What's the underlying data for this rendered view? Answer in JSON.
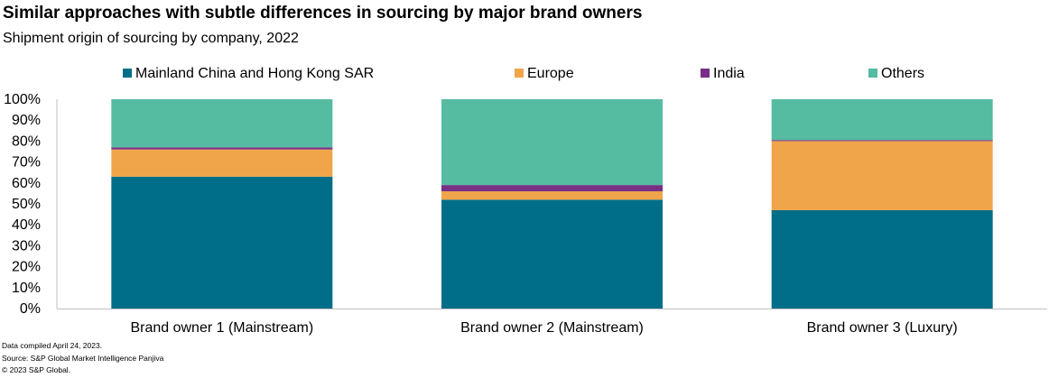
{
  "header": {
    "title": "Similar approaches with subtle differences in sourcing by major brand owners",
    "subtitle": "Shipment origin of sourcing by company, 2022"
  },
  "footer": {
    "line1": "Data compiled April 24, 2023.",
    "line2": "Source: S&P Global Market Intelligence Panjiva",
    "line3": "© 2023 S&P Global."
  },
  "chart_data": {
    "type": "bar",
    "stacked": true,
    "categories": [
      "Brand owner 1 (Mainstream)",
      "Brand owner 2 (Mainstream)",
      "Brand owner 3 (Luxury)"
    ],
    "series": [
      {
        "name": "Mainland China and Hong Kong SAR",
        "color": "#006E89",
        "values": [
          63,
          52,
          47
        ]
      },
      {
        "name": "Europe",
        "color": "#F0A54A",
        "values": [
          13,
          4,
          33
        ]
      },
      {
        "name": "India",
        "color": "#782F85",
        "values": [
          1,
          3,
          0.5
        ]
      },
      {
        "name": "Others",
        "color": "#55BBA1",
        "values": [
          23,
          41,
          19.5
        ]
      }
    ],
    "ylim": [
      0,
      100
    ],
    "yticks": [
      "0%",
      "10%",
      "20%",
      "30%",
      "40%",
      "50%",
      "60%",
      "70%",
      "80%",
      "90%",
      "100%"
    ],
    "legend_position": "top",
    "grid": false
  }
}
